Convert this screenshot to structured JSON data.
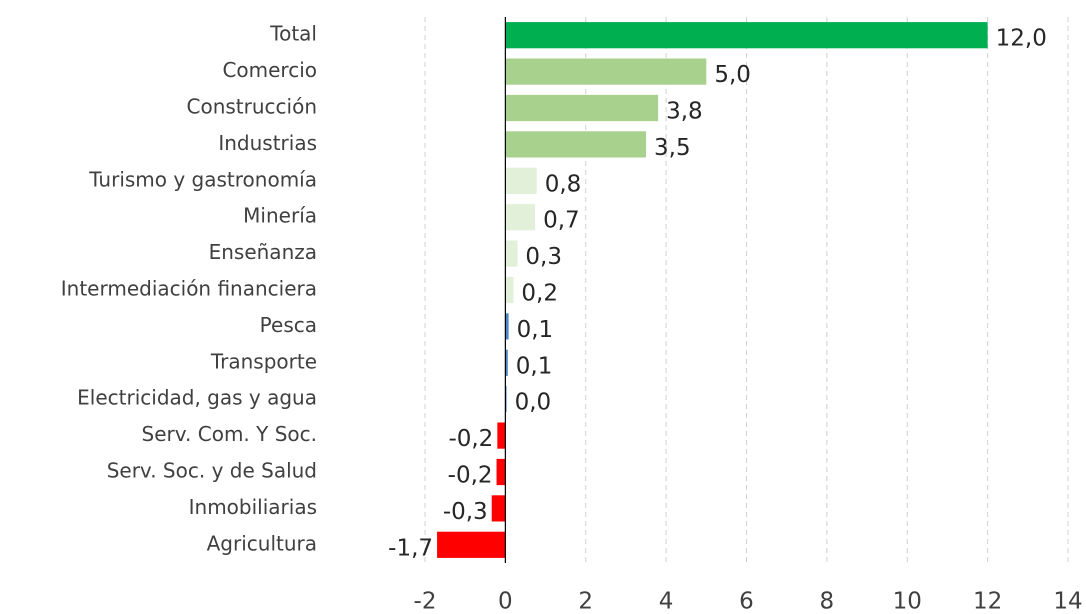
{
  "chart_data": {
    "type": "bar",
    "orientation": "horizontal",
    "categories": [
      "Total",
      "Comercio",
      "Construcción",
      "Industrias",
      "Turismo y gastronomía",
      "Minería",
      "Enseñanza",
      "Intermediación financiera",
      "Pesca",
      "Transporte",
      "Electricidad, gas y agua",
      "Serv. Com. Y Soc.",
      "Serv. Soc. y de Salud",
      "Inmobiliarias",
      "Agricultura"
    ],
    "values": [
      12.0,
      5.0,
      3.8,
      3.5,
      0.78,
      0.74,
      0.3,
      0.2,
      0.08,
      0.06,
      0.03,
      -0.2,
      -0.22,
      -0.34,
      -1.7
    ],
    "value_labels": [
      "12,0",
      "5,0",
      "3,8",
      "3,5",
      "0,8",
      "0,7",
      "0,3",
      "0,2",
      "0,1",
      "0,1",
      "0,0",
      "-0,2",
      "-0,2",
      "-0,3",
      "-1,7"
    ],
    "colors": [
      "#00b050",
      "#a9d18e",
      "#a9d18e",
      "#a9d18e",
      "#e2f0d9",
      "#e2f0d9",
      "#e2f0d9",
      "#e2f0d9",
      "#4a86c8",
      "#4a86c8",
      "#4a86c8",
      "#ff0000",
      "#ff0000",
      "#ff0000",
      "#ff0000"
    ],
    "xlim": [
      -2,
      14
    ],
    "xticks": [
      -2,
      0,
      2,
      4,
      6,
      8,
      10,
      12,
      14
    ],
    "grid": true
  }
}
